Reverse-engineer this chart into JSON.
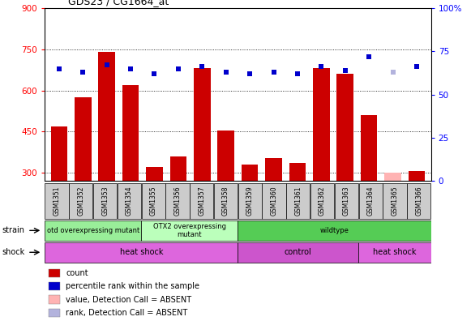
{
  "title": "GDS23 / CG1664_at",
  "samples": [
    "GSM1351",
    "GSM1352",
    "GSM1353",
    "GSM1354",
    "GSM1355",
    "GSM1356",
    "GSM1357",
    "GSM1358",
    "GSM1359",
    "GSM1360",
    "GSM1361",
    "GSM1362",
    "GSM1363",
    "GSM1364",
    "GSM1365",
    "GSM1366"
  ],
  "counts": [
    470,
    575,
    740,
    620,
    320,
    360,
    680,
    455,
    330,
    355,
    335,
    680,
    660,
    510,
    300,
    305
  ],
  "absent_flags": [
    false,
    false,
    false,
    false,
    false,
    false,
    false,
    false,
    false,
    false,
    false,
    false,
    false,
    false,
    true,
    false
  ],
  "percentile_ranks": [
    65,
    63,
    67,
    65,
    62,
    65,
    66,
    63,
    62,
    63,
    62,
    66,
    64,
    72,
    63,
    66
  ],
  "absent_rank_flags": [
    false,
    false,
    false,
    false,
    false,
    false,
    false,
    false,
    false,
    false,
    false,
    false,
    false,
    false,
    true,
    false
  ],
  "ylim_left": [
    270,
    900
  ],
  "ylim_right": [
    0,
    100
  ],
  "yticks_left": [
    300,
    450,
    600,
    750,
    900
  ],
  "yticks_right": [
    0,
    25,
    50,
    75,
    100
  ],
  "bar_color": "#cc0000",
  "bar_absent_color": "#ffb3b3",
  "dot_color": "#0000cc",
  "dot_absent_color": "#b3b3dd",
  "strain_groups": [
    {
      "label": "otd overexpressing mutant",
      "start": 0,
      "end": 4,
      "color": "#99ee99"
    },
    {
      "label": "OTX2 overexpressing\nmutant",
      "start": 4,
      "end": 8,
      "color": "#bbffbb"
    },
    {
      "label": "wildtype",
      "start": 8,
      "end": 16,
      "color": "#55cc55"
    }
  ],
  "shock_groups": [
    {
      "label": "heat shock",
      "start": 0,
      "end": 8,
      "color": "#dd66dd"
    },
    {
      "label": "control",
      "start": 8,
      "end": 13,
      "color": "#cc55cc"
    },
    {
      "label": "heat shock",
      "start": 13,
      "end": 16,
      "color": "#dd66dd"
    }
  ],
  "legend_items": [
    {
      "label": "count",
      "color": "#cc0000"
    },
    {
      "label": "percentile rank within the sample",
      "color": "#0000cc"
    },
    {
      "label": "value, Detection Call = ABSENT",
      "color": "#ffb3b3"
    },
    {
      "label": "rank, Detection Call = ABSENT",
      "color": "#b3b3dd"
    }
  ]
}
